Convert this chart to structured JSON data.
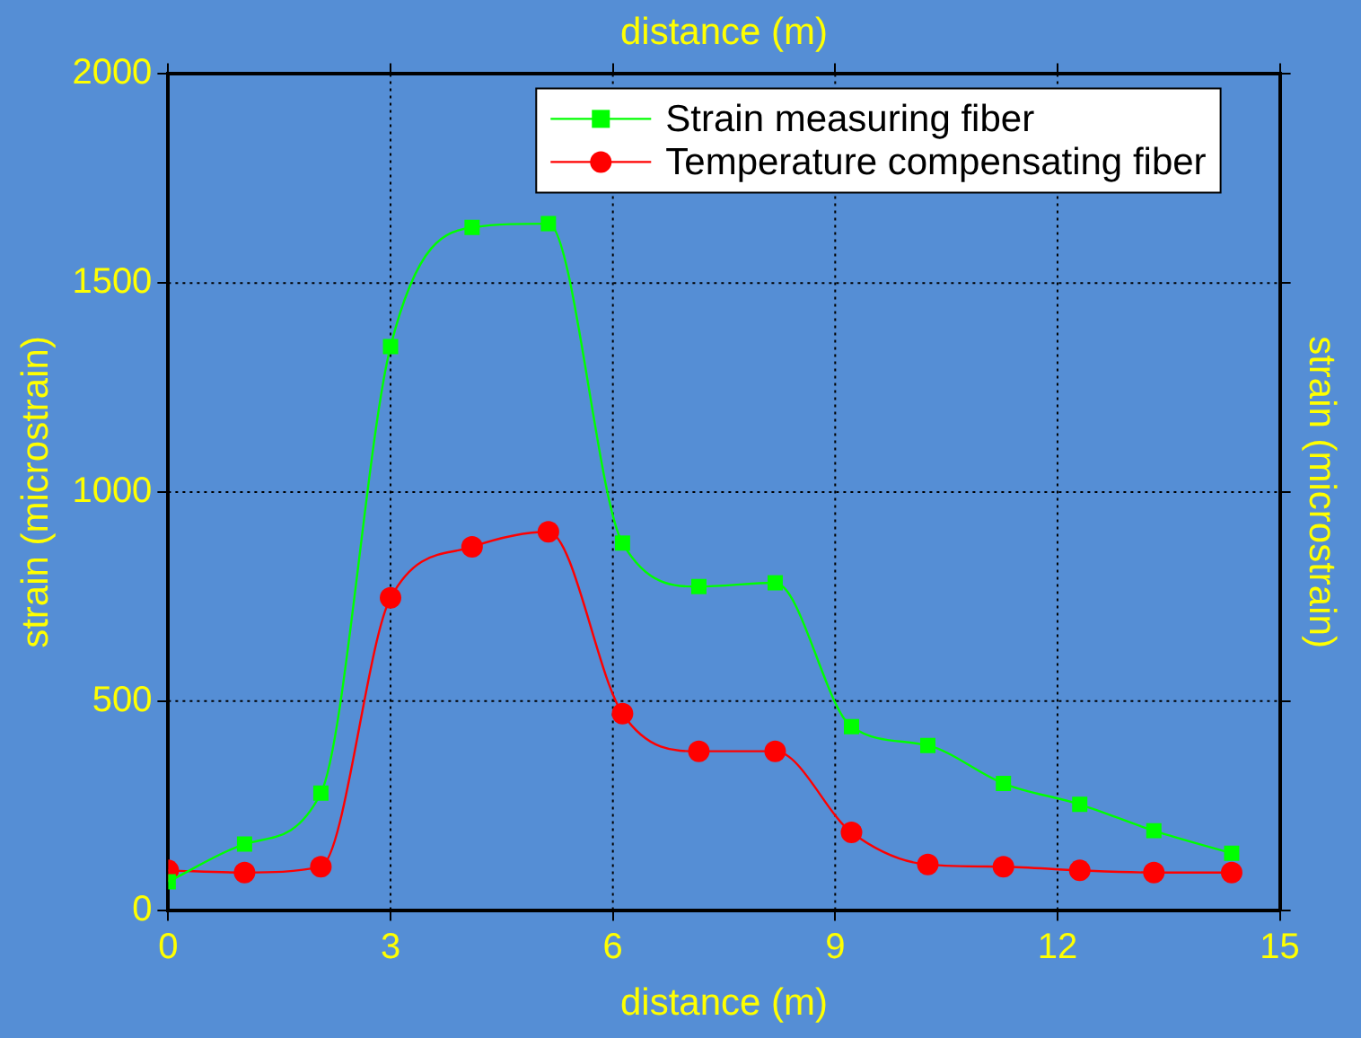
{
  "chart_data": {
    "type": "line",
    "xlabel": "distance (m)",
    "x2label": "distance (m)",
    "ylabel": "strain (microstrain)",
    "y2label": "strain (microstrain)",
    "xlim": [
      0,
      15
    ],
    "xticks": [
      0,
      3,
      6,
      9,
      12,
      15
    ],
    "ylim": [
      0,
      2000
    ],
    "yticks": [
      0,
      500,
      1000,
      1500,
      2000
    ],
    "grid": true,
    "legend": "top right",
    "line_style": "solid",
    "series": [
      {
        "name": "Strain measuring fiber",
        "color": "#00ff00",
        "marker": "square",
        "x": [
          0,
          1.03,
          2.06,
          3,
          4.1,
          5.13,
          6.13,
          7.16,
          8.19,
          9.22,
          10.25,
          11.27,
          12.3,
          13.3,
          14.35
        ],
        "values": [
          68,
          158,
          280,
          1348,
          1633,
          1642,
          878,
          774,
          783,
          439,
          394,
          303,
          253,
          190,
          136
        ]
      },
      {
        "name": "Temperature compensating fiber",
        "color": "#ff0000",
        "marker": "circle",
        "x": [
          0,
          1.03,
          2.06,
          3,
          4.1,
          5.13,
          6.13,
          7.16,
          8.19,
          9.22,
          10.25,
          11.27,
          12.3,
          13.3,
          14.35
        ],
        "values": [
          95,
          90,
          104,
          747,
          869,
          905,
          470,
          380,
          380,
          186,
          109,
          104,
          95,
          90,
          90
        ]
      }
    ]
  }
}
